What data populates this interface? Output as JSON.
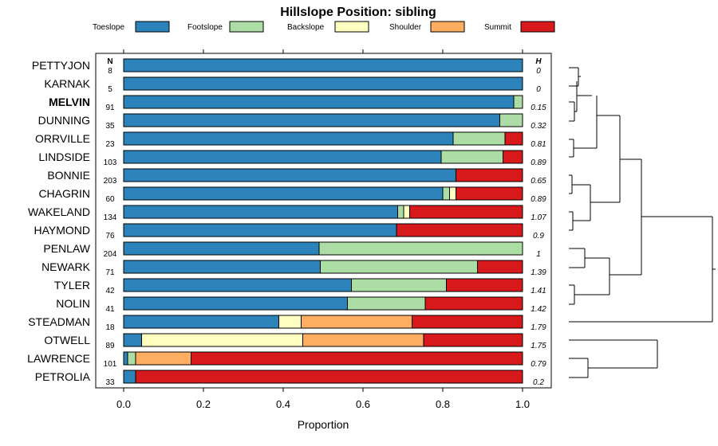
{
  "chart_data": {
    "type": "bar",
    "orientation": "horizontal",
    "stacked": true,
    "title": "Hillslope Position: sibling",
    "xlabel": "Proportion",
    "ylabel": "",
    "xlim": [
      0,
      1
    ],
    "x_ticks": [
      "0.0",
      "0.2",
      "0.4",
      "0.6",
      "0.8",
      "1.0"
    ],
    "n_header": "N",
    "h_header": "H",
    "legend_position": "top",
    "legend": [
      {
        "name": "Toeslope",
        "color": "#2b83ba"
      },
      {
        "name": "Footslope",
        "color": "#abdda4"
      },
      {
        "name": "Backslope",
        "color": "#ffffbf"
      },
      {
        "name": "Shoulder",
        "color": "#fdae61"
      },
      {
        "name": "Summit",
        "color": "#d7191c"
      }
    ],
    "rows": [
      {
        "label": "PETTYJON",
        "n": "8",
        "h": "0",
        "bold": false,
        "values": [
          1.0,
          0,
          0,
          0,
          0
        ]
      },
      {
        "label": "KARNAK",
        "n": "5",
        "h": "0",
        "bold": false,
        "values": [
          1.0,
          0,
          0,
          0,
          0
        ]
      },
      {
        "label": "MELVIN",
        "n": "91",
        "h": "0.15",
        "bold": true,
        "values": [
          0.978,
          0.022,
          0,
          0,
          0
        ]
      },
      {
        "label": "DUNNING",
        "n": "35",
        "h": "0.32",
        "bold": false,
        "values": [
          0.943,
          0.057,
          0,
          0,
          0
        ]
      },
      {
        "label": "ORRVILLE",
        "n": "23",
        "h": "0.81",
        "bold": false,
        "values": [
          0.826,
          0.13,
          0,
          0,
          0.044
        ]
      },
      {
        "label": "LINDSIDE",
        "n": "103",
        "h": "0.89",
        "bold": false,
        "values": [
          0.796,
          0.155,
          0,
          0,
          0.049
        ]
      },
      {
        "label": "BONNIE",
        "n": "203",
        "h": "0.65",
        "bold": false,
        "values": [
          0.833,
          0,
          0,
          0,
          0.167
        ]
      },
      {
        "label": "CHAGRIN",
        "n": "60",
        "h": "0.89",
        "bold": false,
        "values": [
          0.8,
          0.017,
          0.016,
          0,
          0.167
        ]
      },
      {
        "label": "WAKELAND",
        "n": "134",
        "h": "1.07",
        "bold": false,
        "values": [
          0.687,
          0.015,
          0.015,
          0,
          0.283
        ]
      },
      {
        "label": "HAYMOND",
        "n": "76",
        "h": "0.9",
        "bold": false,
        "values": [
          0.684,
          0,
          0,
          0,
          0.316
        ]
      },
      {
        "label": "PENLAW",
        "n": "204",
        "h": "1",
        "bold": false,
        "values": [
          0.49,
          0.51,
          0,
          0,
          0
        ]
      },
      {
        "label": "NEWARK",
        "n": "71",
        "h": "1.39",
        "bold": false,
        "values": [
          0.493,
          0.394,
          0,
          0,
          0.113
        ]
      },
      {
        "label": "TYLER",
        "n": "42",
        "h": "1.41",
        "bold": false,
        "values": [
          0.571,
          0.238,
          0,
          0,
          0.191
        ]
      },
      {
        "label": "NOLIN",
        "n": "41",
        "h": "1.42",
        "bold": false,
        "values": [
          0.561,
          0.195,
          0,
          0,
          0.244
        ]
      },
      {
        "label": "STEADMAN",
        "n": "18",
        "h": "1.79",
        "bold": false,
        "values": [
          0.389,
          0.0,
          0.056,
          0.278,
          0.277
        ]
      },
      {
        "label": "OTWELL",
        "n": "89",
        "h": "1.75",
        "bold": false,
        "values": [
          0.045,
          0,
          0.404,
          0.303,
          0.248
        ]
      },
      {
        "label": "LAWRENCE",
        "n": "101",
        "h": "0.79",
        "bold": false,
        "values": [
          0.01,
          0.02,
          0,
          0.139,
          0.831
        ]
      },
      {
        "label": "PETROLIA",
        "n": "33",
        "h": "0.2",
        "bold": false,
        "values": [
          0.03,
          0,
          0,
          0,
          0.97
        ]
      }
    ]
  }
}
